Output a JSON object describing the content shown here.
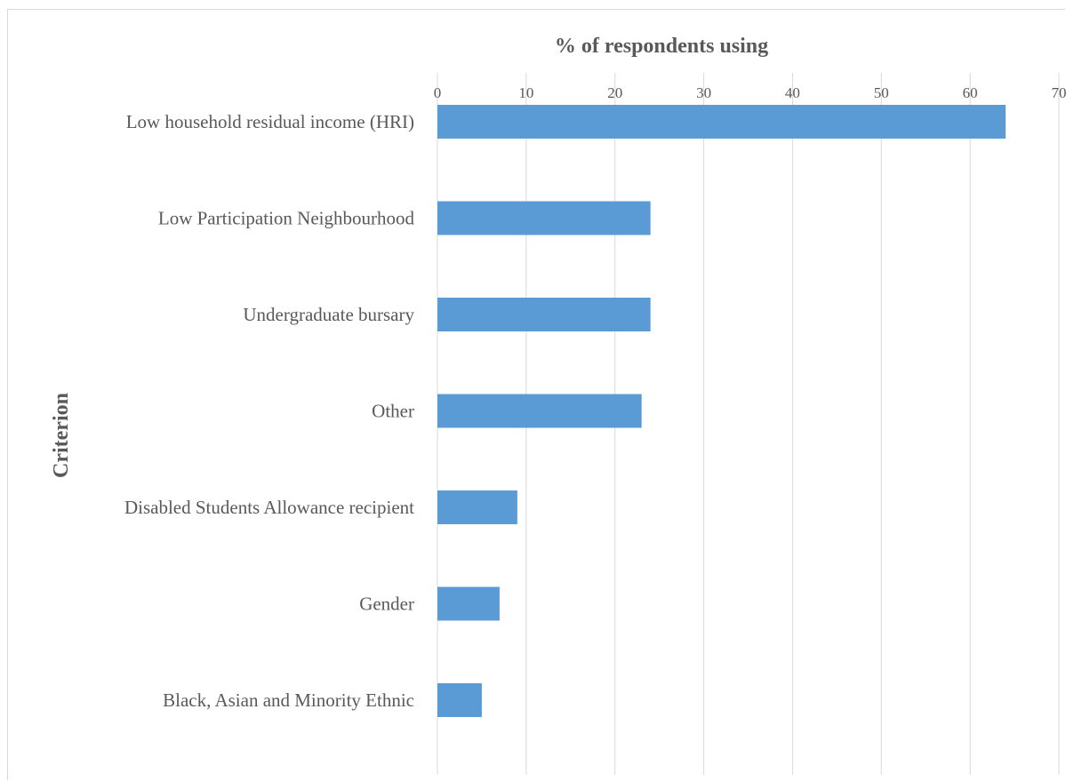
{
  "chart_data": {
    "type": "bar",
    "orientation": "horizontal",
    "xlabel": "% of respondents using",
    "ylabel": "Criterion",
    "xlim": [
      0,
      70
    ],
    "x_ticks": [
      "0",
      "10",
      "20",
      "30",
      "40",
      "50",
      "60",
      "70"
    ],
    "categories": [
      "Low household residual income (HRI)",
      "Low Participation Neighbourhood",
      "Undergraduate bursary",
      "Other",
      "Disabled Students Allowance recipient",
      "Gender",
      "Black, Asian and Minority Ethnic"
    ],
    "values": [
      64,
      24,
      24,
      23,
      9,
      7,
      5
    ],
    "bar_color": "#5b9bd5",
    "grid": true,
    "x_axis_position": "top"
  }
}
